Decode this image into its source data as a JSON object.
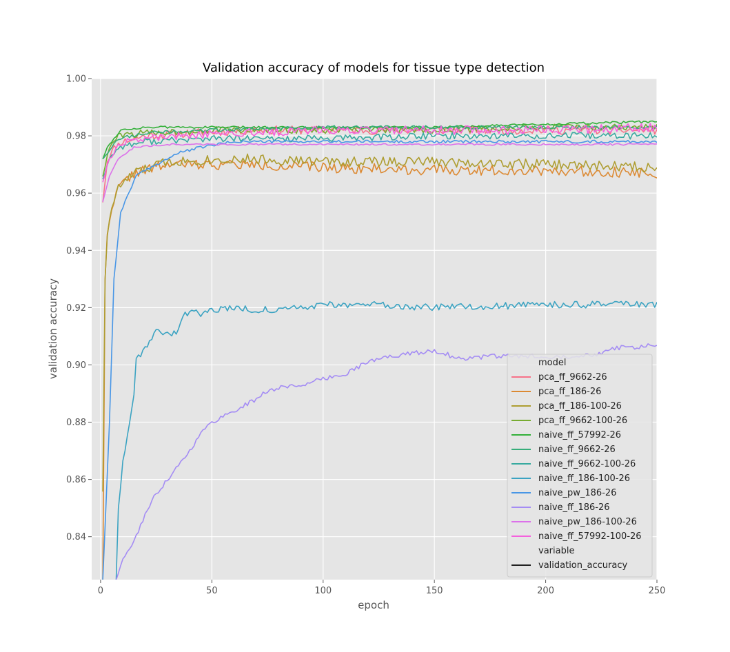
{
  "chart_data": {
    "type": "line",
    "title": "Validation accuracy of models for tissue type detection",
    "xlabel": "epoch",
    "ylabel": "validation accuracy",
    "xlim": [
      -4,
      250
    ],
    "ylim": [
      0.825,
      1.0
    ],
    "xticks": [
      "0",
      "50",
      "100",
      "150",
      "200",
      "250"
    ],
    "xtick_values": [
      0,
      50,
      100,
      150,
      200,
      250
    ],
    "yticks": [
      "0.84",
      "0.86",
      "0.88",
      "0.90",
      "0.92",
      "0.94",
      "0.96",
      "0.98",
      "1.00"
    ],
    "ytick_values": [
      0.84,
      0.86,
      0.88,
      0.9,
      0.92,
      0.94,
      0.96,
      0.98,
      1.0
    ],
    "grid": true,
    "background": "#e5e5e5",
    "legend": {
      "placement": "lower-right",
      "hue_title": "model",
      "style_title": "variable",
      "style_entry": "validation_accuracy",
      "style_color": "#222222"
    },
    "series": [
      {
        "name": "pca_ff_9662-26",
        "color": "#f77189",
        "points": [
          [
            1,
            0.957
          ],
          [
            3,
            0.971
          ],
          [
            6,
            0.976
          ],
          [
            10,
            0.978
          ],
          [
            20,
            0.98
          ],
          [
            40,
            0.981
          ],
          [
            70,
            0.982
          ],
          [
            100,
            0.982
          ],
          [
            150,
            0.982
          ],
          [
            200,
            0.982
          ],
          [
            250,
            0.982
          ]
        ],
        "noise": 0.0015,
        "seed": 11
      },
      {
        "name": "pca_ff_186-26",
        "color": "#dc8932",
        "points": [
          [
            1,
            0.825
          ],
          [
            2,
            0.93
          ],
          [
            3,
            0.945
          ],
          [
            5,
            0.955
          ],
          [
            8,
            0.962
          ],
          [
            15,
            0.967
          ],
          [
            30,
            0.97
          ],
          [
            60,
            0.97
          ],
          [
            100,
            0.969
          ],
          [
            150,
            0.968
          ],
          [
            200,
            0.968
          ],
          [
            250,
            0.967
          ]
        ],
        "noise": 0.0018,
        "seed": 22
      },
      {
        "name": "pca_ff_186-100-26",
        "color": "#ae9d31",
        "points": [
          [
            1,
            0.856
          ],
          [
            2,
            0.93
          ],
          [
            3,
            0.945
          ],
          [
            5,
            0.955
          ],
          [
            8,
            0.962
          ],
          [
            15,
            0.967
          ],
          [
            30,
            0.971
          ],
          [
            60,
            0.972
          ],
          [
            100,
            0.971
          ],
          [
            150,
            0.971
          ],
          [
            200,
            0.97
          ],
          [
            250,
            0.969
          ]
        ],
        "noise": 0.0018,
        "seed": 33
      },
      {
        "name": "pca_ff_9662-100-26",
        "color": "#77ab31",
        "points": [
          [
            1,
            0.966
          ],
          [
            4,
            0.976
          ],
          [
            8,
            0.98
          ],
          [
            20,
            0.981
          ],
          [
            50,
            0.982
          ],
          [
            100,
            0.982
          ],
          [
            150,
            0.982
          ],
          [
            200,
            0.983
          ],
          [
            250,
            0.983
          ]
        ],
        "noise": 0.0012,
        "seed": 44
      },
      {
        "name": "naive_ff_57992-26",
        "color": "#33b039",
        "points": [
          [
            1,
            0.972
          ],
          [
            3,
            0.976
          ],
          [
            7,
            0.98
          ],
          [
            9,
            0.982
          ],
          [
            20,
            0.983
          ],
          [
            50,
            0.983
          ],
          [
            100,
            0.983
          ],
          [
            150,
            0.983
          ],
          [
            200,
            0.984
          ],
          [
            250,
            0.985
          ]
        ],
        "noise": 0.0004,
        "seed": 55
      },
      {
        "name": "naive_ff_9662-26",
        "color": "#36ad7a",
        "points": [
          [
            1,
            0.972
          ],
          [
            4,
            0.975
          ],
          [
            8,
            0.979
          ],
          [
            20,
            0.981
          ],
          [
            50,
            0.982
          ],
          [
            100,
            0.983
          ],
          [
            150,
            0.983
          ],
          [
            200,
            0.983
          ],
          [
            250,
            0.983
          ]
        ],
        "noise": 0.0006,
        "seed": 66
      },
      {
        "name": "naive_ff_9662-100-26",
        "color": "#38aaa0",
        "points": [
          [
            1,
            0.965
          ],
          [
            4,
            0.972
          ],
          [
            8,
            0.976
          ],
          [
            20,
            0.978
          ],
          [
            50,
            0.979
          ],
          [
            100,
            0.979
          ],
          [
            150,
            0.98
          ],
          [
            200,
            0.98
          ],
          [
            250,
            0.98
          ]
        ],
        "noise": 0.0012,
        "seed": 77
      },
      {
        "name": "naive_ff_186-100-26",
        "color": "#3ba3c2",
        "points": [
          [
            7,
            0.825
          ],
          [
            8,
            0.85
          ],
          [
            10,
            0.866
          ],
          [
            13,
            0.88
          ],
          [
            15,
            0.89
          ],
          [
            16,
            0.902
          ],
          [
            20,
            0.906
          ],
          [
            25,
            0.912
          ],
          [
            32,
            0.911
          ],
          [
            35,
            0.912
          ],
          [
            37,
            0.918
          ],
          [
            45,
            0.918
          ],
          [
            55,
            0.92
          ],
          [
            80,
            0.919
          ],
          [
            100,
            0.921
          ],
          [
            120,
            0.921
          ],
          [
            150,
            0.92
          ],
          [
            200,
            0.921
          ],
          [
            250,
            0.921
          ]
        ],
        "noise": 0.0012,
        "seed": 88
      },
      {
        "name": "naive_pw_186-26",
        "color": "#4896e6",
        "points": [
          [
            1,
            0.825
          ],
          [
            4,
            0.88
          ],
          [
            6,
            0.93
          ],
          [
            9,
            0.953
          ],
          [
            12,
            0.959
          ],
          [
            16,
            0.966
          ],
          [
            25,
            0.97
          ],
          [
            35,
            0.974
          ],
          [
            45,
            0.976
          ],
          [
            60,
            0.978
          ],
          [
            100,
            0.978
          ],
          [
            150,
            0.978
          ],
          [
            200,
            0.978
          ],
          [
            250,
            0.978
          ]
        ],
        "noise": 0.0005,
        "seed": 99
      },
      {
        "name": "naive_ff_186-26",
        "color": "#a48cf4",
        "points": [
          [
            7,
            0.825
          ],
          [
            10,
            0.832
          ],
          [
            13,
            0.836
          ],
          [
            15,
            0.838
          ],
          [
            20,
            0.848
          ],
          [
            25,
            0.855
          ],
          [
            30,
            0.86
          ],
          [
            40,
            0.87
          ],
          [
            45,
            0.876
          ],
          [
            50,
            0.88
          ],
          [
            60,
            0.884
          ],
          [
            70,
            0.888
          ],
          [
            75,
            0.891
          ],
          [
            80,
            0.892
          ],
          [
            90,
            0.893
          ],
          [
            100,
            0.895
          ],
          [
            110,
            0.897
          ],
          [
            120,
            0.901
          ],
          [
            130,
            0.903
          ],
          [
            140,
            0.904
          ],
          [
            150,
            0.905
          ],
          [
            155,
            0.904
          ],
          [
            160,
            0.902
          ],
          [
            175,
            0.903
          ],
          [
            190,
            0.903
          ],
          [
            210,
            0.903
          ],
          [
            225,
            0.904
          ],
          [
            230,
            0.906
          ],
          [
            240,
            0.906
          ],
          [
            250,
            0.907
          ]
        ],
        "noise": 0.0008,
        "seed": 111
      },
      {
        "name": "naive_pw_186-100-26",
        "color": "#dc71ea",
        "points": [
          [
            1,
            0.957
          ],
          [
            4,
            0.966
          ],
          [
            8,
            0.972
          ],
          [
            15,
            0.976
          ],
          [
            30,
            0.977
          ],
          [
            60,
            0.977
          ],
          [
            100,
            0.977
          ],
          [
            150,
            0.977
          ],
          [
            200,
            0.977
          ],
          [
            250,
            0.977
          ]
        ],
        "noise": 0.0003,
        "seed": 122
      },
      {
        "name": "naive_ff_57992-100-26",
        "color": "#f561dd",
        "points": [
          [
            1,
            0.964
          ],
          [
            4,
            0.972
          ],
          [
            8,
            0.977
          ],
          [
            15,
            0.979
          ],
          [
            30,
            0.98
          ],
          [
            60,
            0.981
          ],
          [
            100,
            0.982
          ],
          [
            150,
            0.982
          ],
          [
            200,
            0.982
          ],
          [
            250,
            0.983
          ]
        ],
        "noise": 0.0015,
        "seed": 133
      }
    ]
  }
}
